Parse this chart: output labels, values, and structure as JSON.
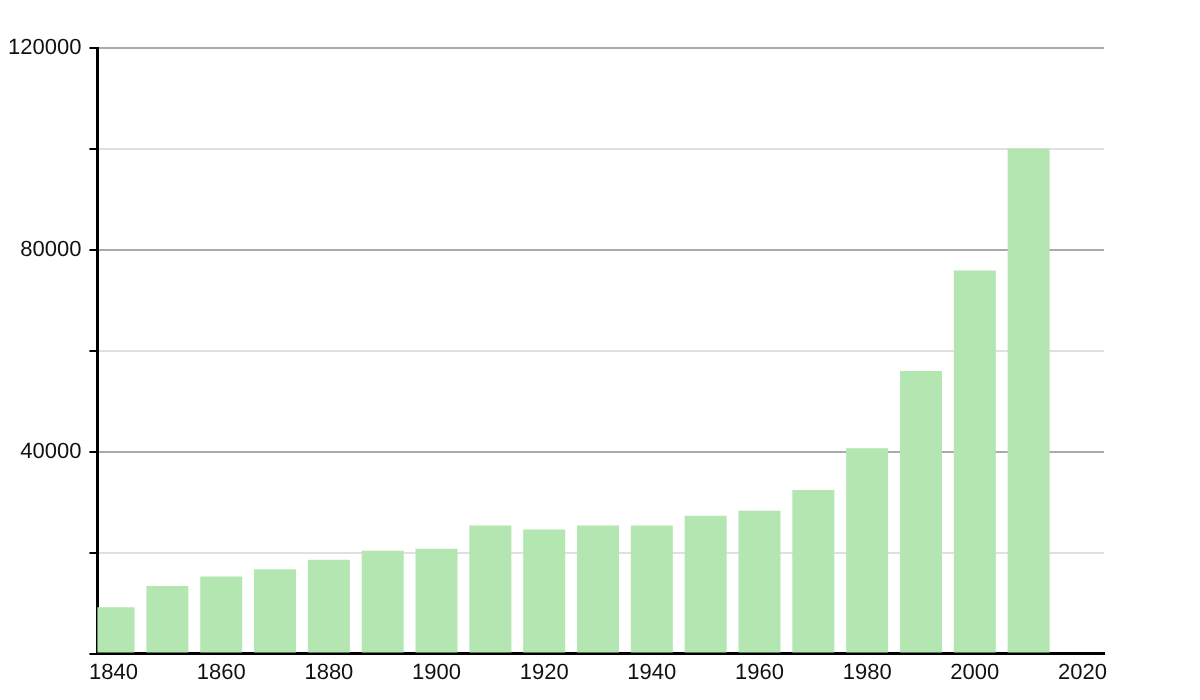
{
  "chart_data": {
    "type": "bar",
    "x": [
      1840,
      1850,
      1860,
      1870,
      1880,
      1890,
      1900,
      1910,
      1920,
      1930,
      1940,
      1950,
      1960,
      1970,
      1980,
      1990,
      2000,
      2010
    ],
    "values": [
      9200,
      13400,
      15300,
      16700,
      18600,
      20400,
      20800,
      25400,
      24600,
      25400,
      25400,
      27300,
      28300,
      32400,
      40700,
      56000,
      75900,
      100100
    ],
    "color": "#b3e6b0",
    "xlim": [
      1837,
      2024
    ],
    "xticks": [
      1840,
      1860,
      1880,
      1900,
      1920,
      1940,
      1960,
      1980,
      2000,
      2020
    ],
    "ylim": [
      0,
      120000
    ],
    "yticks": [
      {
        "value": 0,
        "label": null
      },
      {
        "value": 20000,
        "label": null
      },
      40000,
      {
        "value": 60000,
        "label": null
      },
      80000,
      {
        "value": 100000,
        "label": null
      },
      120000
    ],
    "grid": "y"
  }
}
